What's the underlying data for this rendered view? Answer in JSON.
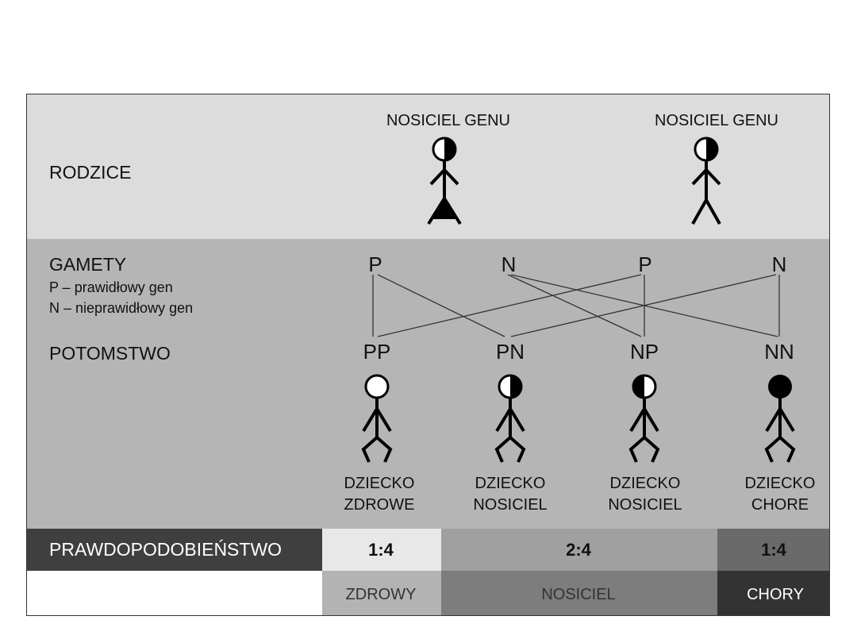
{
  "colors": {
    "top_band": "#dcdcdc",
    "middle_band": "#b5b5b5",
    "label_dark": "#3f3f3f",
    "zdrowy": "#e8e8e8",
    "nosiciel": "#a0a0a0",
    "chory": "#6a6a6a",
    "zdrowy_label": "#b3b3b3",
    "nosiciel_label": "#7d7d7d",
    "chory_label": "#333333"
  },
  "parents": {
    "row_label": "RODZICE",
    "mother_label": "NOSICIEL GENU",
    "father_label": "NOSICIEL GENU"
  },
  "gametes": {
    "title": "GAMETY",
    "legend_p": "P – prawidłowy gen",
    "legend_n": "N – nieprawidłowy gen",
    "items": [
      "P",
      "N",
      "P",
      "N"
    ]
  },
  "offspring": {
    "row_label": "POTOMSTWO",
    "genotypes": [
      "PP",
      "PN",
      "NP",
      "NN"
    ],
    "children": [
      {
        "line1": "DZIECKO",
        "line2": "ZDROWE",
        "head": "white"
      },
      {
        "line1": "DZIECKO",
        "line2": "NOSICIEL",
        "head": "half-right-black"
      },
      {
        "line1": "DZIECKO",
        "line2": "NOSICIEL",
        "head": "half-left-black"
      },
      {
        "line1": "DZIECKO",
        "line2": "CHORE",
        "head": "black"
      }
    ]
  },
  "probability": {
    "label": "PRAWDOPODOBIEŃSTWO",
    "zdrowy_ratio": "1:4",
    "nosiciel_ratio": "2:4",
    "chory_ratio": "1:4",
    "zdrowy_label": "ZDROWY",
    "nosiciel_label": "NOSICIEL",
    "chory_label": "CHORY"
  }
}
